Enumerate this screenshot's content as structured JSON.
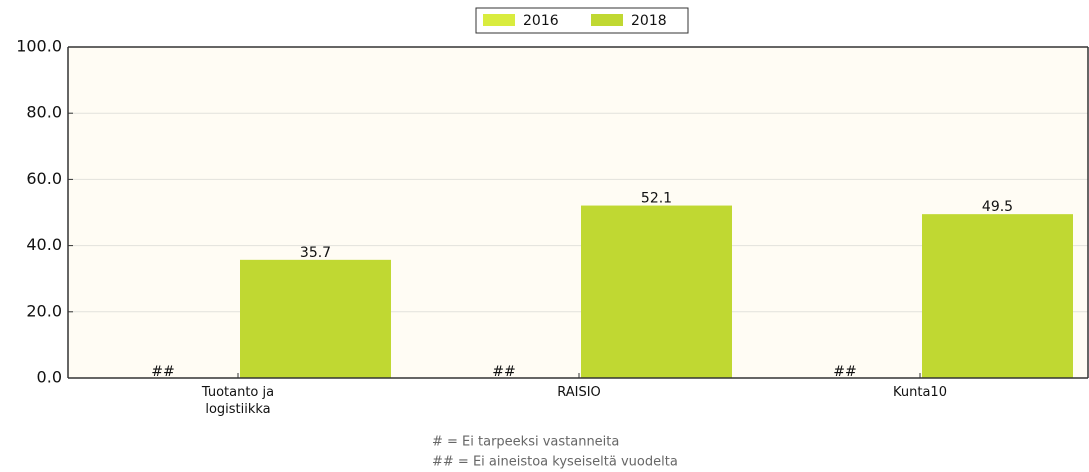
{
  "chart_data": {
    "type": "bar",
    "categories": [
      "Tuotanto ja logistiikka",
      "RAISIO",
      "Kunta10"
    ],
    "series": [
      {
        "name": "2016",
        "color": "#d9ec3e",
        "values": [
          null,
          null,
          null
        ],
        "value_labels": [
          "##",
          "##",
          "##"
        ]
      },
      {
        "name": "2018",
        "color": "#c0d832",
        "values": [
          35.7,
          52.1,
          49.5
        ]
      }
    ],
    "ylim": [
      0,
      100
    ],
    "yticks": [
      {
        "value": 0,
        "label": "0.0"
      },
      {
        "value": 20,
        "label": "20.0"
      },
      {
        "value": 40,
        "label": "40.0"
      },
      {
        "value": 60,
        "label": "60.0"
      },
      {
        "value": 80,
        "label": "80.0"
      },
      {
        "value": 100,
        "label": "100.0"
      }
    ],
    "grid": true,
    "legend": "top",
    "notes": [
      "# = Ei tarpeeksi vastanneita",
      "## = Ei aineistoa kyseiseltä vuodelta"
    ]
  }
}
